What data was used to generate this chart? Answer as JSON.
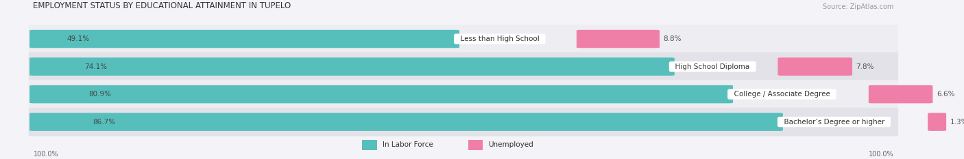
{
  "title": "EMPLOYMENT STATUS BY EDUCATIONAL ATTAINMENT IN TUPELO",
  "source": "Source: ZipAtlas.com",
  "categories": [
    "Less than High School",
    "High School Diploma",
    "College / Associate Degree",
    "Bachelor’s Degree or higher"
  ],
  "labor_force": [
    49.1,
    74.1,
    80.9,
    86.7
  ],
  "unemployed": [
    8.8,
    7.8,
    6.6,
    1.3
  ],
  "labor_force_color": "#56bfbc",
  "unemployed_color": "#f07fa8",
  "row_bg_light": "#ededf2",
  "row_bg_dark": "#e2e2e8",
  "fig_bg": "#f4f4f8",
  "axis_label_left": "100.0%",
  "axis_label_right": "100.0%",
  "legend_labor_force": "In Labor Force",
  "legend_unemployed": "Unemployed",
  "title_fontsize": 8.5,
  "source_fontsize": 7,
  "bar_label_fontsize": 7.5,
  "cat_label_fontsize": 7.5,
  "axis_fontsize": 7,
  "legend_fontsize": 7.5,
  "lf_label_color": "#444444",
  "un_label_color": "#555555"
}
